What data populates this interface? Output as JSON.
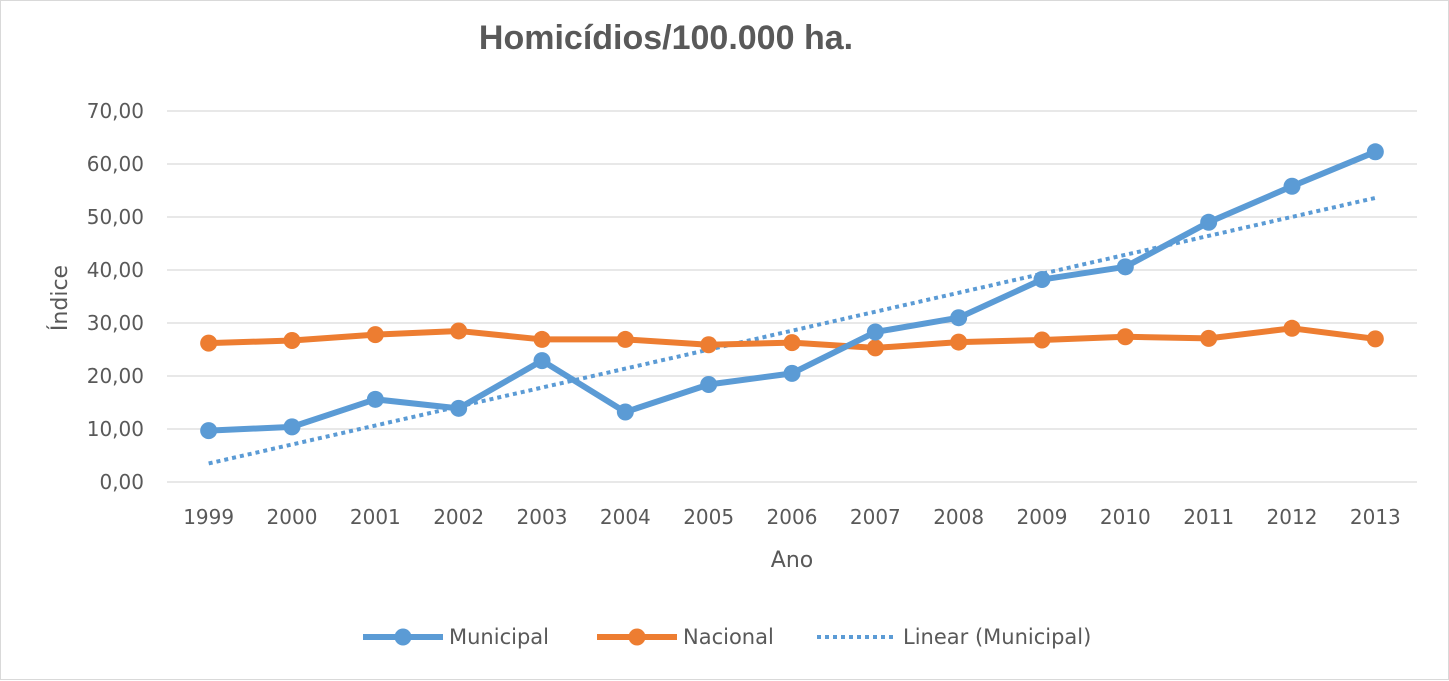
{
  "chart_data": {
    "type": "line",
    "title": "Homicídios/100.000 ha.",
    "xlabel": "Ano",
    "ylabel": "Índice",
    "categories": [
      "1999",
      "2000",
      "2001",
      "2002",
      "2003",
      "2004",
      "2005",
      "2006",
      "2007",
      "2008",
      "2009",
      "2010",
      "2011",
      "2012",
      "2013"
    ],
    "ylim": [
      0,
      70
    ],
    "yticks": [
      "0,00",
      "10,00",
      "20,00",
      "30,00",
      "40,00",
      "50,00",
      "60,00",
      "70,00"
    ],
    "grid": true,
    "legend_position": "bottom",
    "series": [
      {
        "name": "Municipal",
        "color": "#5B9BD5",
        "values": [
          9.7,
          10.4,
          15.6,
          13.9,
          22.9,
          13.2,
          18.4,
          20.5,
          28.3,
          31.0,
          38.2,
          40.6,
          49.0,
          55.8,
          62.3
        ]
      },
      {
        "name": "Nacional",
        "color": "#ED7D31",
        "values": [
          26.2,
          26.7,
          27.8,
          28.5,
          26.9,
          26.9,
          25.9,
          26.3,
          25.3,
          26.4,
          26.8,
          27.4,
          27.1,
          29.0,
          27.0
        ]
      }
    ],
    "trendline": {
      "name": "Linear (Municipal)",
      "color": "#5B9BD5",
      "type": "linear",
      "start_value": 3.5,
      "end_value": 53.6
    }
  }
}
